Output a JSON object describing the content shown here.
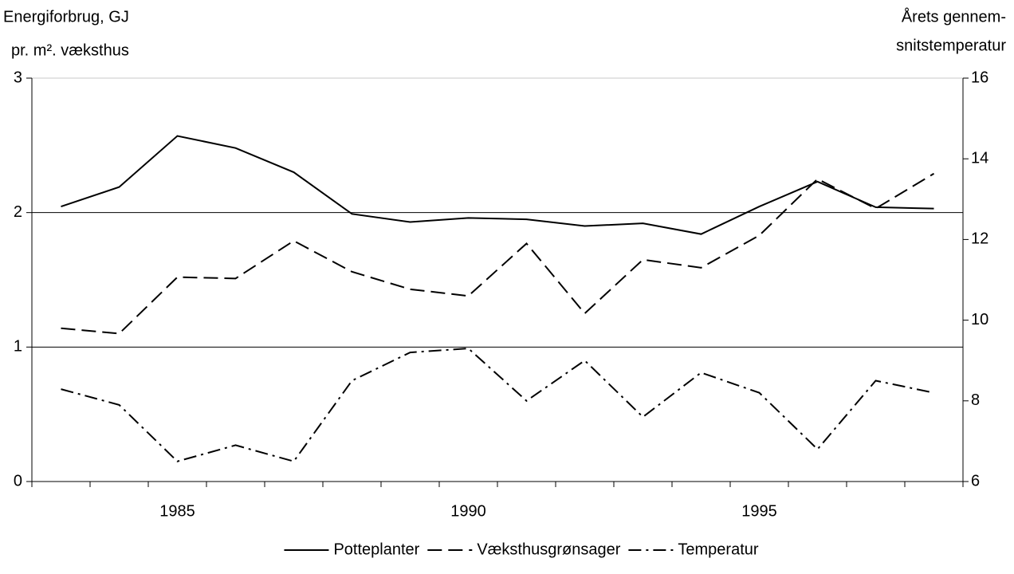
{
  "chart_data": {
    "type": "line",
    "y_label": [
      "Energiforbrug, GJ",
      "pr. m². væksthus"
    ],
    "y2_label": [
      "Årets gennem-",
      "snitstemperatur"
    ],
    "x": [
      1983,
      1984,
      1985,
      1986,
      1987,
      1988,
      1989,
      1990,
      1991,
      1992,
      1993,
      1994,
      1995,
      1996,
      1997,
      1998
    ],
    "xlim": [
      1982.5,
      1998.5
    ],
    "xticks": [
      1985,
      1990,
      1995
    ],
    "ylim": [
      0,
      3
    ],
    "yticks": [
      0,
      1,
      2,
      3
    ],
    "y2lim": [
      6,
      16
    ],
    "y2ticks": [
      6,
      8,
      10,
      12,
      14,
      16
    ],
    "grid": true,
    "legend": "bottom",
    "series": [
      {
        "name": "Potteplanter",
        "color": "#000000",
        "dash": "solid",
        "values": [
          2.045,
          2.19,
          2.57,
          2.48,
          2.3,
          1.99,
          1.93,
          1.96,
          1.95,
          1.9,
          1.92,
          1.84,
          2.045,
          2.23,
          2.04,
          2.03
        ]
      },
      {
        "name": "Væksthusgrønsager",
        "color": "#000000",
        "dash": "dashed",
        "values": [
          1.14,
          1.1,
          1.52,
          1.51,
          1.79,
          1.56,
          1.43,
          1.38,
          1.77,
          1.25,
          1.65,
          1.59,
          1.83,
          2.25,
          2.03,
          2.29
        ]
      },
      {
        "name": "Temperatur",
        "color": "#000000",
        "dash": "dashdot",
        "axis": "y2",
        "values": [
          8.29,
          7.9,
          6.5,
          6.9,
          6.5,
          8.5,
          9.2,
          9.3,
          8.0,
          9.0,
          7.6,
          8.7,
          8.2,
          6.8,
          8.5,
          8.2
        ]
      }
    ]
  }
}
